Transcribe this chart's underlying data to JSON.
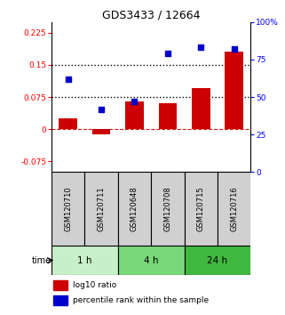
{
  "title": "GDS3433 / 12664",
  "samples": [
    "GSM120710",
    "GSM120711",
    "GSM120648",
    "GSM120708",
    "GSM120715",
    "GSM120716"
  ],
  "log10_ratio": [
    0.025,
    -0.012,
    0.065,
    0.06,
    0.095,
    0.18
  ],
  "percentile_rank": [
    0.62,
    0.42,
    0.47,
    0.79,
    0.83,
    0.82
  ],
  "time_groups": [
    {
      "label": "1 h",
      "spans": [
        0,
        2
      ],
      "color": "#c8f0c8"
    },
    {
      "label": "4 h",
      "spans": [
        2,
        4
      ],
      "color": "#78d878"
    },
    {
      "label": "24 h",
      "spans": [
        4,
        6
      ],
      "color": "#40b840"
    }
  ],
  "bar_color": "#cc0000",
  "dot_color": "#0000cc",
  "ylim_left": [
    -0.1,
    0.25
  ],
  "ylim_right": [
    0,
    1.0
  ],
  "yticks_left": [
    -0.075,
    0,
    0.075,
    0.15,
    0.225
  ],
  "yticks_right": [
    0,
    0.25,
    0.5,
    0.75,
    1.0
  ],
  "ytick_labels_left": [
    "-0.075",
    "0",
    "0.075",
    "0.15",
    "0.225"
  ],
  "ytick_labels_right": [
    "0",
    "25",
    "50",
    "75",
    "100%"
  ],
  "hlines": [
    0.075,
    0.15
  ],
  "zero_line_color": "#cc0000",
  "hline_color": "#000000",
  "legend_labels": [
    "log10 ratio",
    "percentile rank within the sample"
  ],
  "bar_color_legend": "#cc0000",
  "dot_color_legend": "#0000cc"
}
